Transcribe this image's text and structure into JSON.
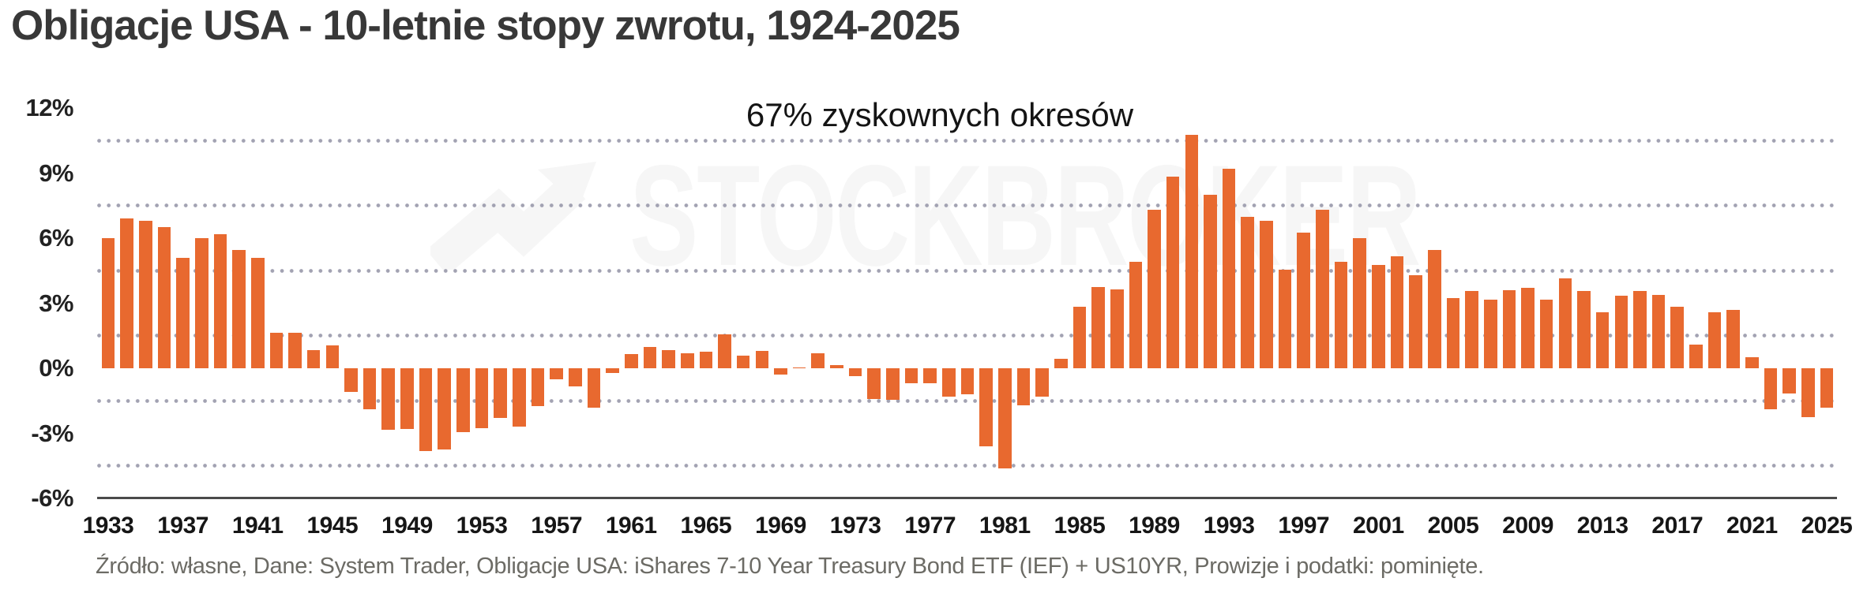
{
  "title": "Obligacje USA - 10-letnie stopy zwrotu, 1924-2025",
  "annotation": "67% zyskownych okresów",
  "watermark_text": "STOCKBROKER",
  "footer": "Źródło: własne, Dane: System Trader, Obligacje USA: iShares 7-10 Year Treasury Bond ETF (IEF) + US10YR, Prowizje i podatki: pominięte.",
  "colors": {
    "bar": "#e8692f",
    "title": "#383838",
    "tick_label": "#1a1a1a",
    "grid_dot": "#a2a2b2",
    "axis_line": "#4a4a4a",
    "footer_text": "#6c6b65",
    "watermark": "#f6f6f6",
    "background": "#ffffff"
  },
  "chart_data": {
    "type": "bar",
    "title": "Obligacje USA - 10-letnie stopy zwrotu, 1924-2025",
    "annotation": "67% zyskownych okresów",
    "xlabel": "",
    "ylabel": "",
    "ylim": [
      -6,
      12
    ],
    "grid": "dotted horizontal, between tick levels",
    "gridlines_at": [
      10.5,
      7.5,
      4.5,
      1.5,
      -1.5,
      -4.5
    ],
    "yticks": [
      12,
      9,
      6,
      3,
      0,
      -3,
      -6
    ],
    "ytick_labels": [
      "12%",
      "9%",
      "6%",
      "3%",
      "0%",
      "-3%",
      "-6%"
    ],
    "xtick_years": [
      1933,
      1937,
      1941,
      1945,
      1949,
      1953,
      1957,
      1961,
      1965,
      1969,
      1973,
      1977,
      1981,
      1985,
      1989,
      1993,
      1997,
      2001,
      2005,
      2009,
      2013,
      2017,
      2021,
      2025
    ],
    "years": [
      1933,
      1934,
      1935,
      1936,
      1937,
      1938,
      1939,
      1940,
      1941,
      1942,
      1943,
      1944,
      1945,
      1946,
      1947,
      1948,
      1949,
      1950,
      1951,
      1952,
      1953,
      1954,
      1955,
      1956,
      1957,
      1958,
      1959,
      1960,
      1961,
      1962,
      1963,
      1964,
      1965,
      1966,
      1967,
      1968,
      1969,
      1970,
      1971,
      1972,
      1973,
      1974,
      1975,
      1976,
      1977,
      1978,
      1979,
      1980,
      1981,
      1982,
      1983,
      1984,
      1985,
      1986,
      1987,
      1988,
      1989,
      1990,
      1991,
      1992,
      1993,
      1994,
      1995,
      1996,
      1997,
      1998,
      1999,
      2000,
      2001,
      2002,
      2003,
      2004,
      2005,
      2006,
      2007,
      2008,
      2009,
      2010,
      2011,
      2012,
      2013,
      2014,
      2015,
      2016,
      2017,
      2018,
      2019,
      2020,
      2021,
      2022,
      2023,
      2024,
      2025
    ],
    "values": [
      6.0,
      6.9,
      6.8,
      6.5,
      5.1,
      6.0,
      6.2,
      5.45,
      5.1,
      1.65,
      1.65,
      0.85,
      1.05,
      -1.1,
      -1.9,
      -2.85,
      -2.8,
      -3.8,
      -3.75,
      -2.95,
      -2.75,
      -2.3,
      -2.7,
      -1.75,
      -0.5,
      -0.85,
      -1.8,
      -0.2,
      0.65,
      1.0,
      0.85,
      0.7,
      0.75,
      1.55,
      0.6,
      0.8,
      -0.3,
      0.05,
      0.7,
      0.15,
      -0.35,
      -1.4,
      -1.45,
      -0.7,
      -0.7,
      -1.3,
      -1.2,
      -3.6,
      -4.6,
      -1.7,
      -1.3,
      0.45,
      2.85,
      3.75,
      3.65,
      4.9,
      7.3,
      8.85,
      10.75,
      8.0,
      9.2,
      7.0,
      6.8,
      4.55,
      6.25,
      7.3,
      4.9,
      6.0,
      4.75,
      5.15,
      4.3,
      5.45,
      3.25,
      3.55,
      3.15,
      3.6,
      3.7,
      3.15,
      4.15,
      3.55,
      2.6,
      3.35,
      3.55,
      3.4,
      2.85,
      1.1,
      2.6,
      2.7,
      0.5,
      -1.9,
      -1.15,
      -2.25,
      -1.8
    ],
    "bar_color": "#e8692f",
    "legend": null,
    "legend_position": null
  }
}
